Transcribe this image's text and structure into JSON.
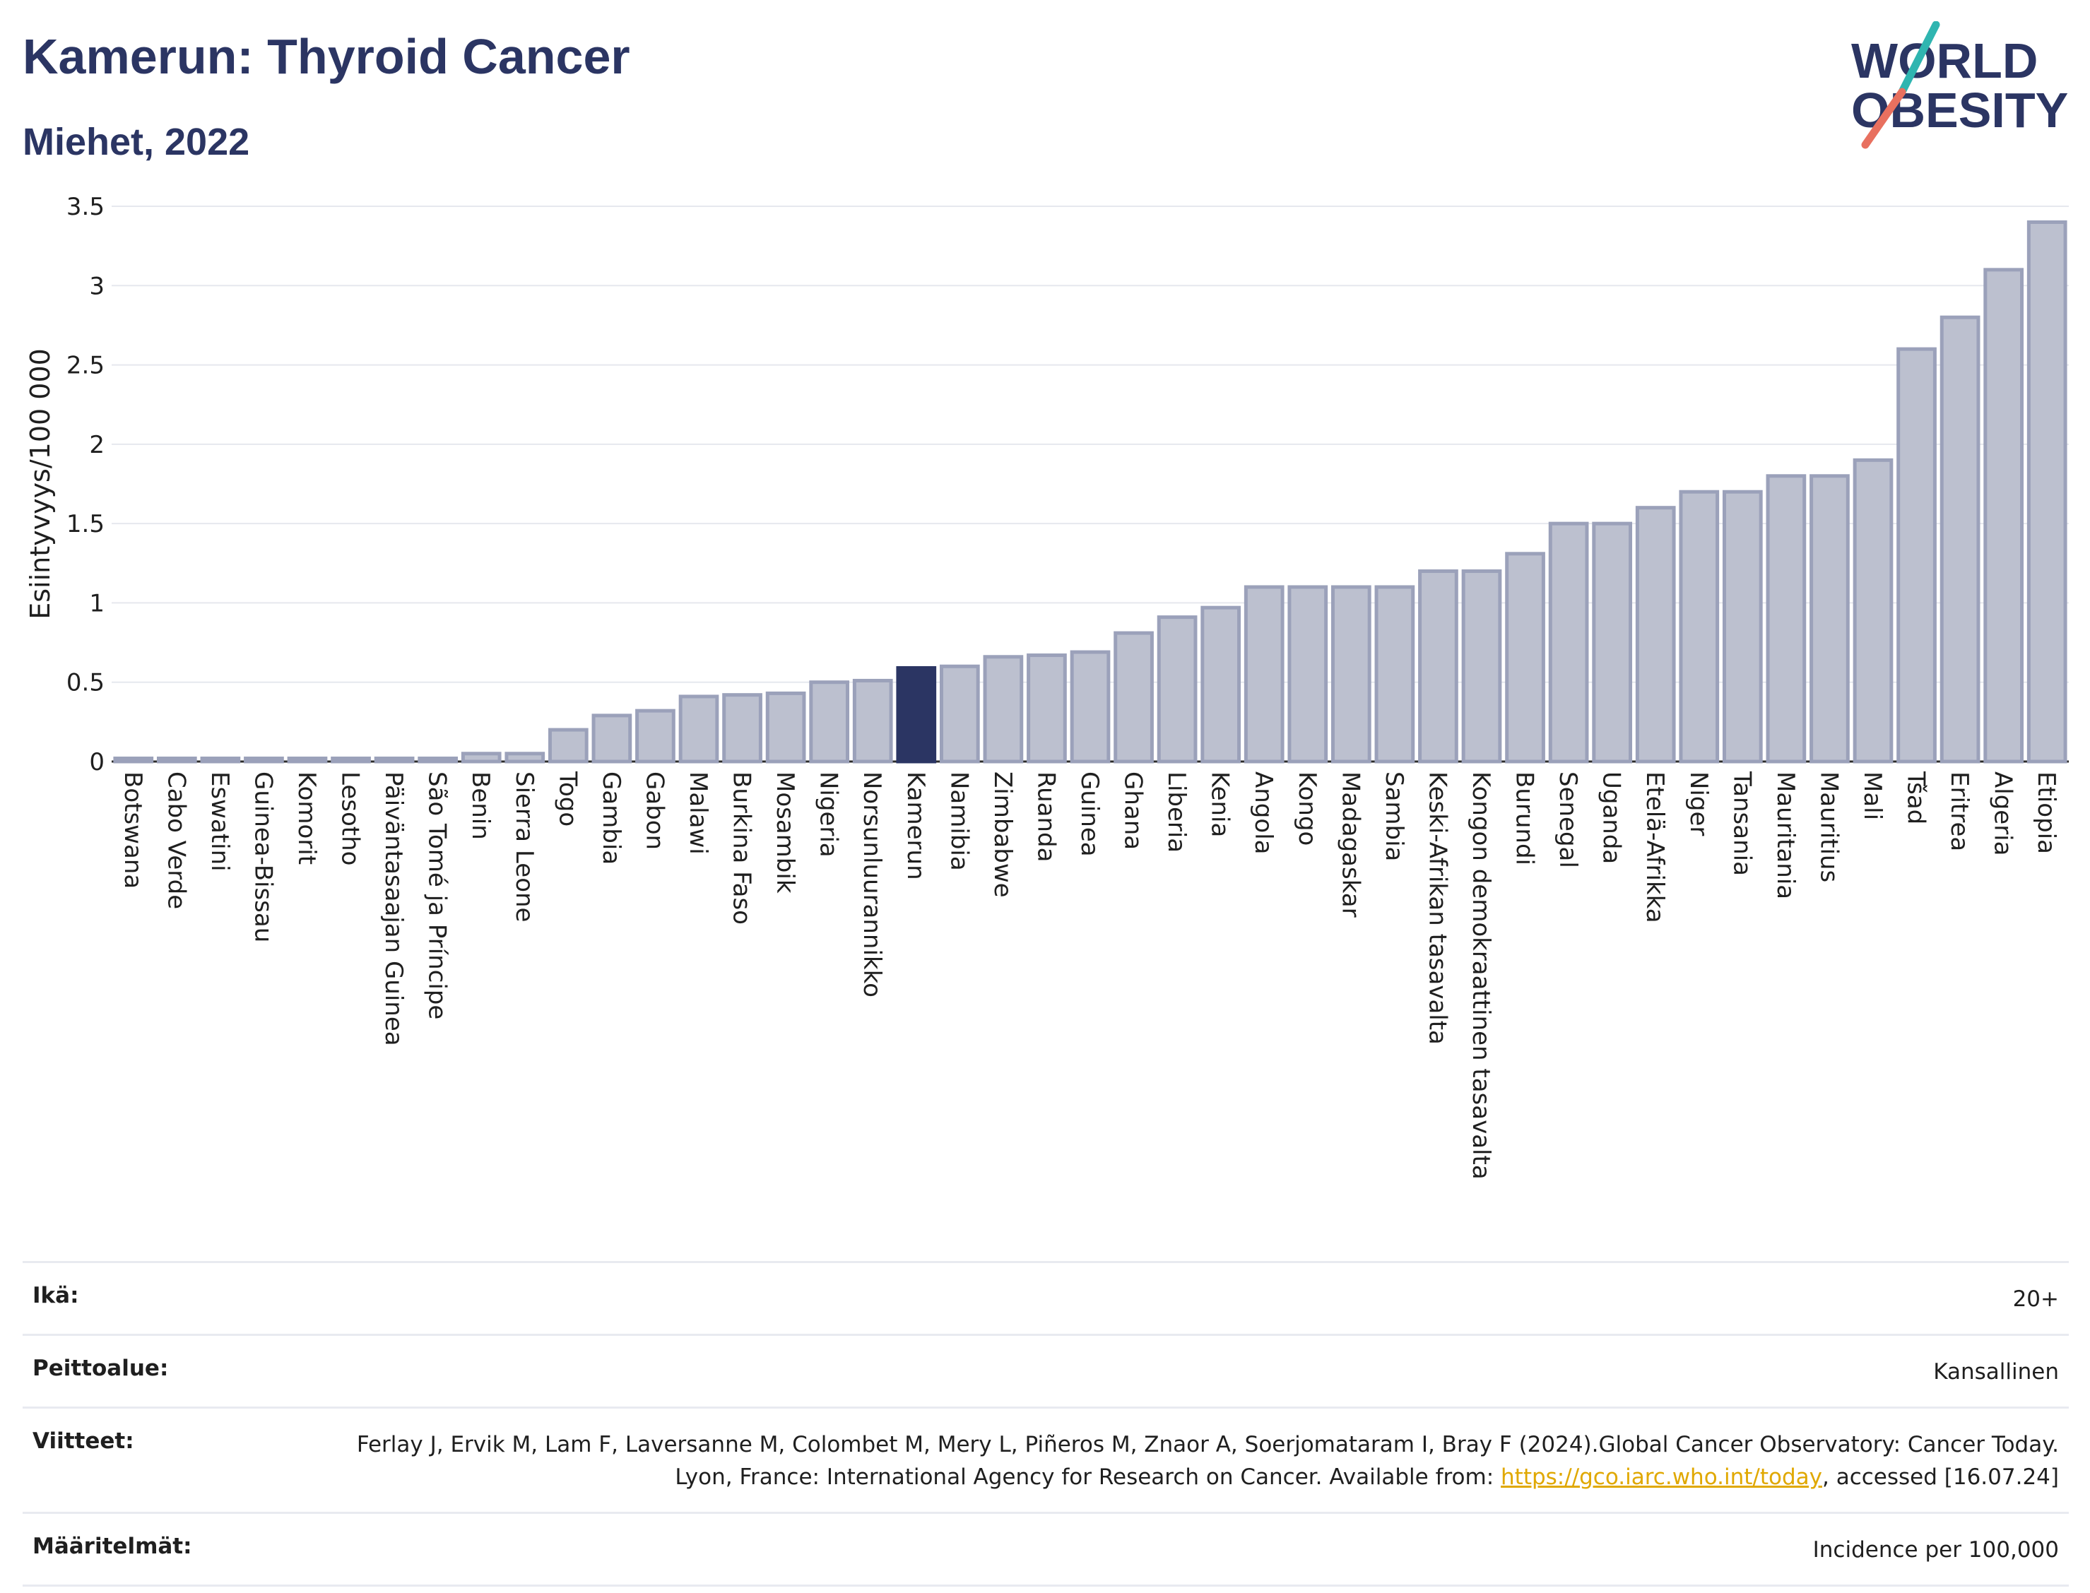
{
  "header": {
    "title": "Kamerun: Thyroid Cancer",
    "subtitle": "Miehet, 2022"
  },
  "logo": {
    "line1": "WORLD",
    "line2": "OBESITY"
  },
  "colors": {
    "bar": "#bcc0cf",
    "bar_stroke": "#9ba1ba",
    "highlight": "#2b3563",
    "title": "#2b3563",
    "link": "#e0a800"
  },
  "chart_data": {
    "type": "bar",
    "ylabel": "Esiintyvyys/100 000",
    "ylim": [
      0,
      3.5
    ],
    "yticks": [
      "0",
      "0.5",
      "1",
      "1.5",
      "2",
      "2.5",
      "3",
      "3.5"
    ],
    "grid": true,
    "highlight": "Kamerun",
    "categories": [
      "Botswana",
      "Cabo Verde",
      "Eswatini",
      "Guinea-Bissau",
      "Komorit",
      "Lesotho",
      "Päiväntasaajan Guinea",
      "São Tomé ja Príncipe",
      "Benin",
      "Sierra Leone",
      "Togo",
      "Gambia",
      "Gabon",
      "Malawi",
      "Burkina Faso",
      "Mosambik",
      "Nigeria",
      "Norsunluurannikko",
      "Kamerun",
      "Namibia",
      "Zimbabwe",
      "Ruanda",
      "Guinea",
      "Ghana",
      "Liberia",
      "Kenia",
      "Angola",
      "Kongo",
      "Madagaskar",
      "Sambia",
      "Keski-Afrikan tasavalta",
      "Kongon demokraattinen tasavalta",
      "Burundi",
      "Senegal",
      "Uganda",
      "Etelä-Afrikka",
      "Niger",
      "Tansania",
      "Mauritania",
      "Mauritius",
      "Mali",
      "Tšad",
      "Eritrea",
      "Algeria",
      "Etiopia"
    ],
    "values": [
      0.02,
      0.02,
      0.02,
      0.02,
      0.02,
      0.02,
      0.02,
      0.02,
      0.05,
      0.05,
      0.2,
      0.29,
      0.32,
      0.41,
      0.42,
      0.43,
      0.5,
      0.51,
      0.59,
      0.6,
      0.66,
      0.67,
      0.69,
      0.81,
      0.91,
      0.97,
      1.1,
      1.1,
      1.1,
      1.1,
      1.2,
      1.2,
      1.31,
      1.5,
      1.5,
      1.6,
      1.7,
      1.7,
      1.8,
      1.8,
      1.9,
      2.6,
      2.8,
      3.1,
      3.4
    ]
  },
  "info": {
    "age_label": "Ikä:",
    "age_value": "20+",
    "coverage_label": "Peittoalue:",
    "coverage_value": "Kansallinen",
    "refs_label": "Viitteet:",
    "refs_text": "Ferlay J, Ervik M, Lam F, Laversanne M, Colombet M, Mery L, Piñeros M, Znaor A, Soerjomataram I, Bray F (2024).Global Cancer Observatory: Cancer Today. Lyon, France: International Agency for Research on Cancer. Available from: ",
    "refs_link": "https://gco.iarc.who.int/today",
    "refs_tail": ", accessed [16.07.24]",
    "defs_label": "Määritelmät:",
    "defs_value": "Incidence per 100,000"
  }
}
